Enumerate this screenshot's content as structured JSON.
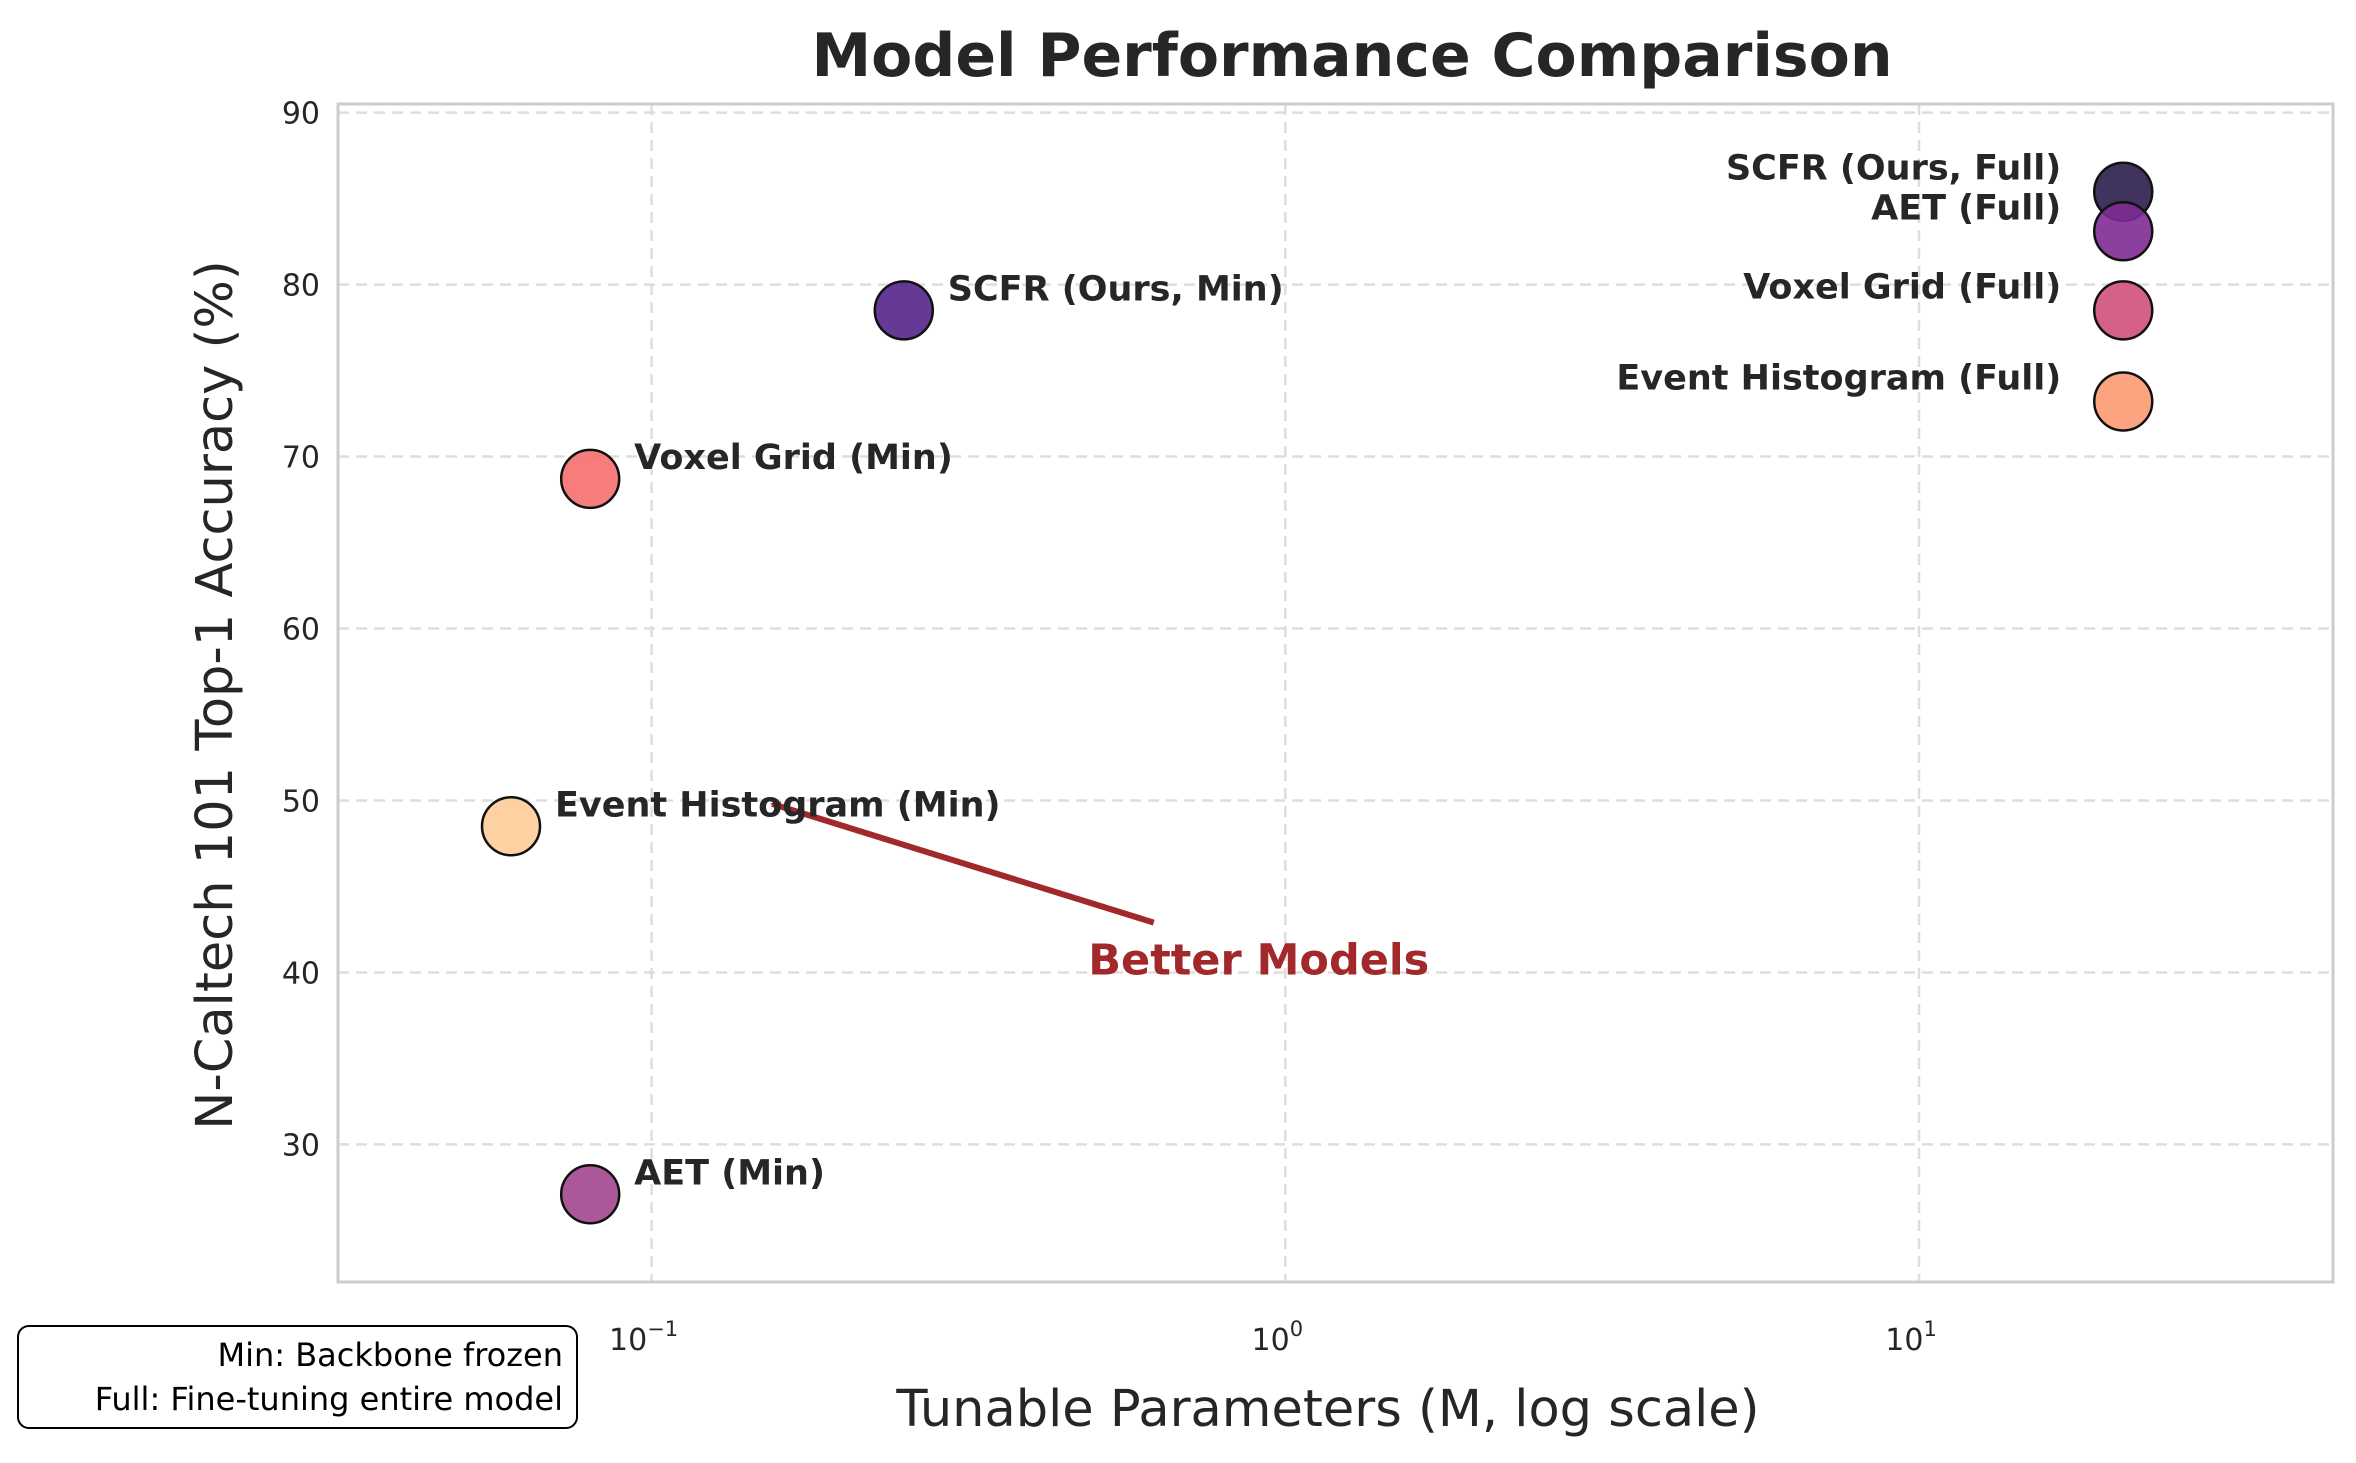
{
  "chart_data": {
    "type": "scatter",
    "title": "Model Performance Comparison",
    "xlabel": "Tunable Parameters (M, log scale)",
    "ylabel": "N-Caltech 101 Top-1 Accuracy (%)",
    "xscale": "log",
    "xlim": [
      0.032,
      45
    ],
    "ylim": [
      22,
      90.5
    ],
    "x_ticks": [
      {
        "base": "10",
        "exp": "−1",
        "value": 0.1
      },
      {
        "base": "10",
        "exp": "0",
        "value": 1
      },
      {
        "base": "10",
        "exp": "1",
        "value": 10
      }
    ],
    "y_ticks": [
      30,
      40,
      50,
      60,
      70,
      80,
      90
    ],
    "grid": true,
    "points": [
      {
        "label": "SCFR (Ours, Full)",
        "x": 21,
        "y": 85.4,
        "color": "#2b1d4b",
        "label_side": "left"
      },
      {
        "label": "AET (Full)",
        "x": 21,
        "y": 83.1,
        "color": "#7e2b93",
        "label_side": "left"
      },
      {
        "label": "Voxel Grid (Full)",
        "x": 21,
        "y": 78.5,
        "color": "#d1507a",
        "label_side": "left"
      },
      {
        "label": "Event Histogram (Full)",
        "x": 21,
        "y": 73.2,
        "color": "#fc9a71",
        "label_side": "left"
      },
      {
        "label": "SCFR (Ours, Min)",
        "x": 0.25,
        "y": 78.5,
        "color": "#55248b",
        "label_side": "right"
      },
      {
        "label": "Voxel Grid (Min)",
        "x": 0.08,
        "y": 68.7,
        "color": "#f66f6f",
        "label_side": "right"
      },
      {
        "label": "Event Histogram (Min)",
        "x": 0.06,
        "y": 48.5,
        "color": "#fdcc98",
        "label_side": "right"
      },
      {
        "label": "AET (Min)",
        "x": 0.08,
        "y": 27.1,
        "color": "#a1468f",
        "label_side": "right"
      }
    ],
    "annotation": {
      "text": "Better Models",
      "color": "#a1282b",
      "arrow_from": {
        "x": 0.62,
        "y": 42.9
      },
      "arrow_to": {
        "x": 0.155,
        "y": 49.8
      }
    }
  },
  "legend_note": {
    "line1": "Min: Backbone frozen",
    "line2": "Full: Fine-tuning entire model"
  }
}
